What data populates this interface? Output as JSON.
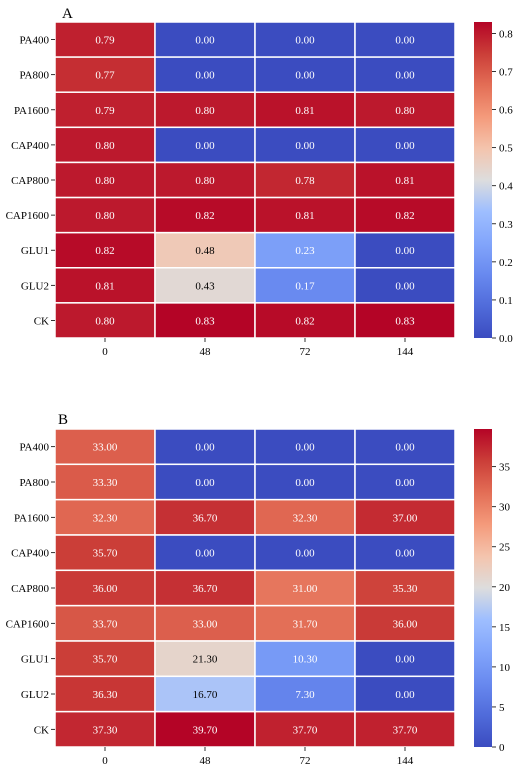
{
  "chart_data": [
    {
      "type": "heatmap",
      "panel_label": "A",
      "rows": [
        "PA400",
        "PA800",
        "PA1600",
        "CAP400",
        "CAP800",
        "CAP1600",
        "GLU1",
        "GLU2",
        "CK"
      ],
      "columns": [
        "0",
        "48",
        "72",
        "144"
      ],
      "values": [
        [
          0.79,
          0.0,
          0.0,
          0.0
        ],
        [
          0.77,
          0.0,
          0.0,
          0.0
        ],
        [
          0.79,
          0.8,
          0.81,
          0.8
        ],
        [
          0.8,
          0.0,
          0.0,
          0.0
        ],
        [
          0.8,
          0.8,
          0.78,
          0.81
        ],
        [
          0.8,
          0.82,
          0.81,
          0.82
        ],
        [
          0.82,
          0.48,
          0.23,
          0.0
        ],
        [
          0.81,
          0.43,
          0.17,
          0.0
        ],
        [
          0.8,
          0.83,
          0.82,
          0.83
        ]
      ],
      "value_format_decimals": 2,
      "colormap": "coolwarm",
      "vmin": 0,
      "vmax": 0.83,
      "colorbar_ticks": [
        "0.0",
        "0.1",
        "0.2",
        "0.3",
        "0.4",
        "0.5",
        "0.6",
        "0.7",
        "0.8"
      ]
    },
    {
      "type": "heatmap",
      "panel_label": "B",
      "rows": [
        "PA400",
        "PA800",
        "PA1600",
        "CAP400",
        "CAP800",
        "CAP1600",
        "GLU1",
        "GLU2",
        "CK"
      ],
      "columns": [
        "0",
        "48",
        "72",
        "144"
      ],
      "values": [
        [
          33.0,
          0.0,
          0.0,
          0.0
        ],
        [
          33.3,
          0.0,
          0.0,
          0.0
        ],
        [
          32.3,
          36.7,
          32.3,
          37.0
        ],
        [
          35.7,
          0.0,
          0.0,
          0.0
        ],
        [
          36.0,
          36.7,
          31.0,
          35.3
        ],
        [
          33.7,
          33.0,
          31.7,
          36.0
        ],
        [
          35.7,
          21.3,
          10.3,
          0.0
        ],
        [
          36.3,
          16.7,
          7.3,
          0.0
        ],
        [
          37.3,
          39.7,
          37.7,
          37.7
        ]
      ],
      "value_format_decimals": 2,
      "colormap": "coolwarm",
      "vmin": 0,
      "vmax": 39.7,
      "colorbar_ticks": [
        "0",
        "5",
        "10",
        "15",
        "20",
        "25",
        "30",
        "35"
      ]
    }
  ]
}
